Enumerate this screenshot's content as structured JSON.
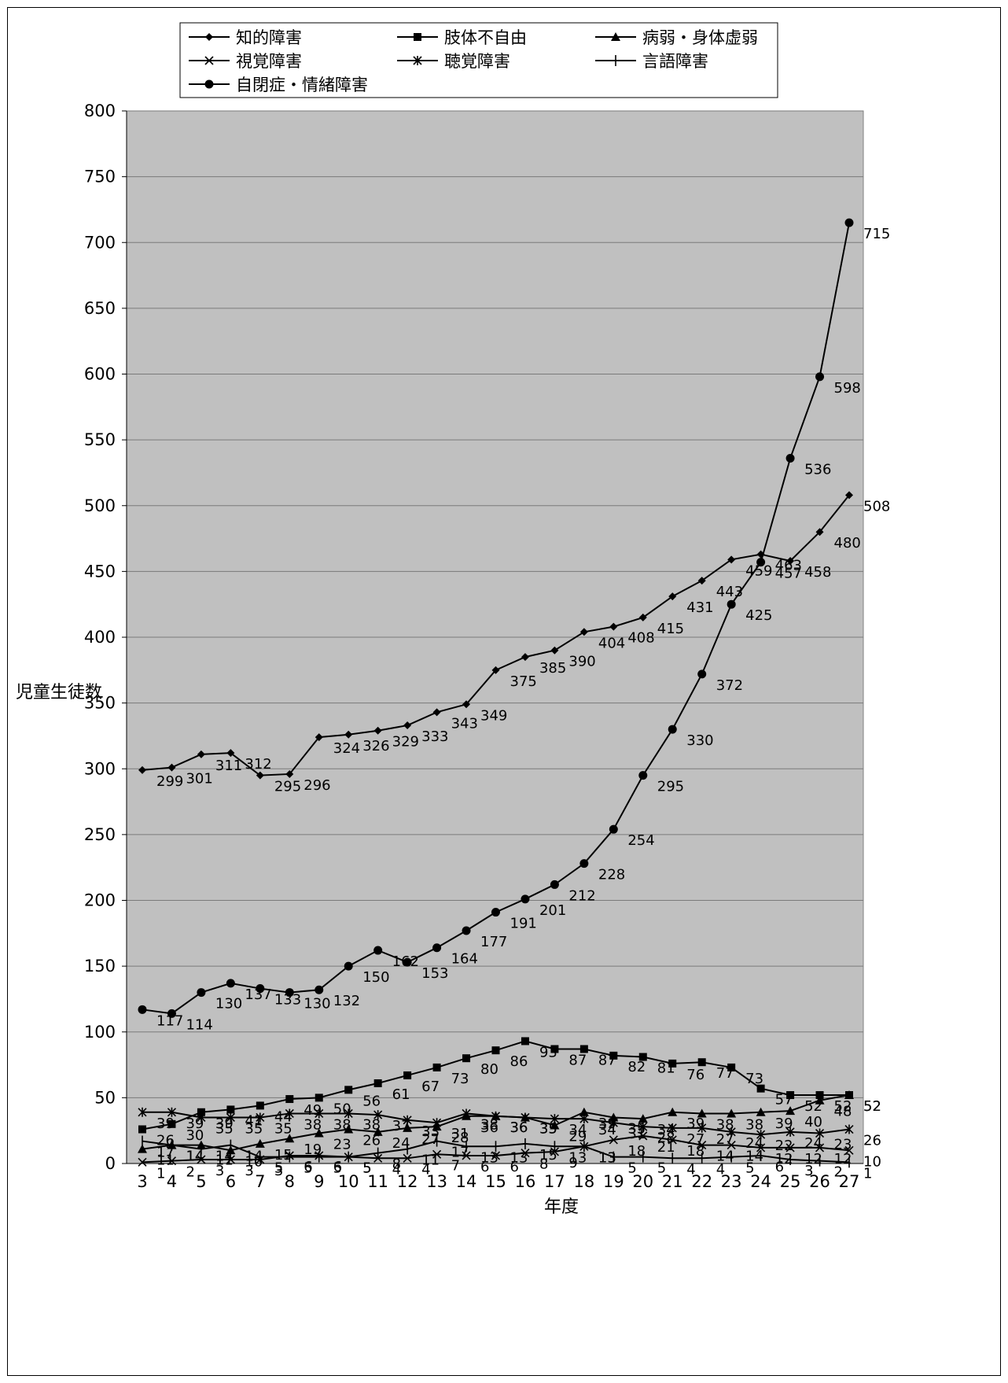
{
  "chart_data": {
    "type": "line",
    "title": "",
    "xlabel": "年度",
    "ylabel": "児童生徒数",
    "ylim": [
      0,
      800
    ],
    "yticks": [
      0,
      50,
      100,
      150,
      200,
      250,
      300,
      350,
      400,
      450,
      500,
      550,
      600,
      650,
      700,
      750,
      800
    ],
    "x": [
      "3",
      "4",
      "5",
      "6",
      "7",
      "8",
      "9",
      "10",
      "11",
      "12",
      "13",
      "14",
      "15",
      "16",
      "17",
      "18",
      "19",
      "20",
      "21",
      "22",
      "23",
      "24",
      "25",
      "26",
      "27"
    ],
    "grid": true,
    "legend_position": "top",
    "series": [
      {
        "name": "知的障害",
        "marker": "diamond",
        "values": [
          299,
          301,
          311,
          312,
          295,
          296,
          324,
          326,
          329,
          333,
          343,
          349,
          375,
          385,
          390,
          404,
          408,
          415,
          431,
          443,
          459,
          463,
          458,
          480,
          508
        ]
      },
      {
        "name": "肢体不自由",
        "marker": "square",
        "values": [
          26,
          30,
          39,
          41,
          44,
          49,
          50,
          56,
          61,
          67,
          73,
          80,
          86,
          93,
          87,
          87,
          82,
          81,
          76,
          77,
          73,
          57,
          52,
          52,
          52
        ]
      },
      {
        "name": "病弱・身体虚弱",
        "marker": "triangle",
        "values": [
          11,
          14,
          14,
          10,
          15,
          19,
          23,
          26,
          24,
          27,
          28,
          36,
          36,
          35,
          29,
          39,
          35,
          34,
          39,
          38,
          38,
          39,
          40,
          48,
          52
        ]
      },
      {
        "name": "視覚障害",
        "marker": "x",
        "values": [
          1,
          2,
          3,
          3,
          3,
          6,
          6,
          5,
          4,
          4,
          7,
          6,
          6,
          8,
          9,
          13,
          18,
          21,
          18,
          14,
          14,
          12,
          12,
          12,
          10
        ]
      },
      {
        "name": "聴覚障害",
        "marker": "star",
        "values": [
          39,
          39,
          35,
          35,
          35,
          38,
          38,
          38,
          37,
          33,
          31,
          38,
          36,
          35,
          34,
          34,
          31,
          28,
          27,
          27,
          24,
          22,
          24,
          23,
          26
        ]
      },
      {
        "name": "言語障害",
        "marker": "plus",
        "values": [
          17,
          14,
          11,
          14,
          5,
          5,
          5,
          5,
          8,
          11,
          17,
          13,
          13,
          15,
          13,
          13,
          5,
          5,
          4,
          4,
          5,
          6,
          3,
          2,
          1
        ]
      },
      {
        "name": "自閉症・情緒障害",
        "marker": "circle",
        "values": [
          117,
          114,
          130,
          137,
          133,
          130,
          132,
          150,
          162,
          153,
          164,
          177,
          191,
          201,
          212,
          228,
          254,
          295,
          330,
          372,
          425,
          457,
          536,
          598,
          715
        ]
      }
    ]
  }
}
